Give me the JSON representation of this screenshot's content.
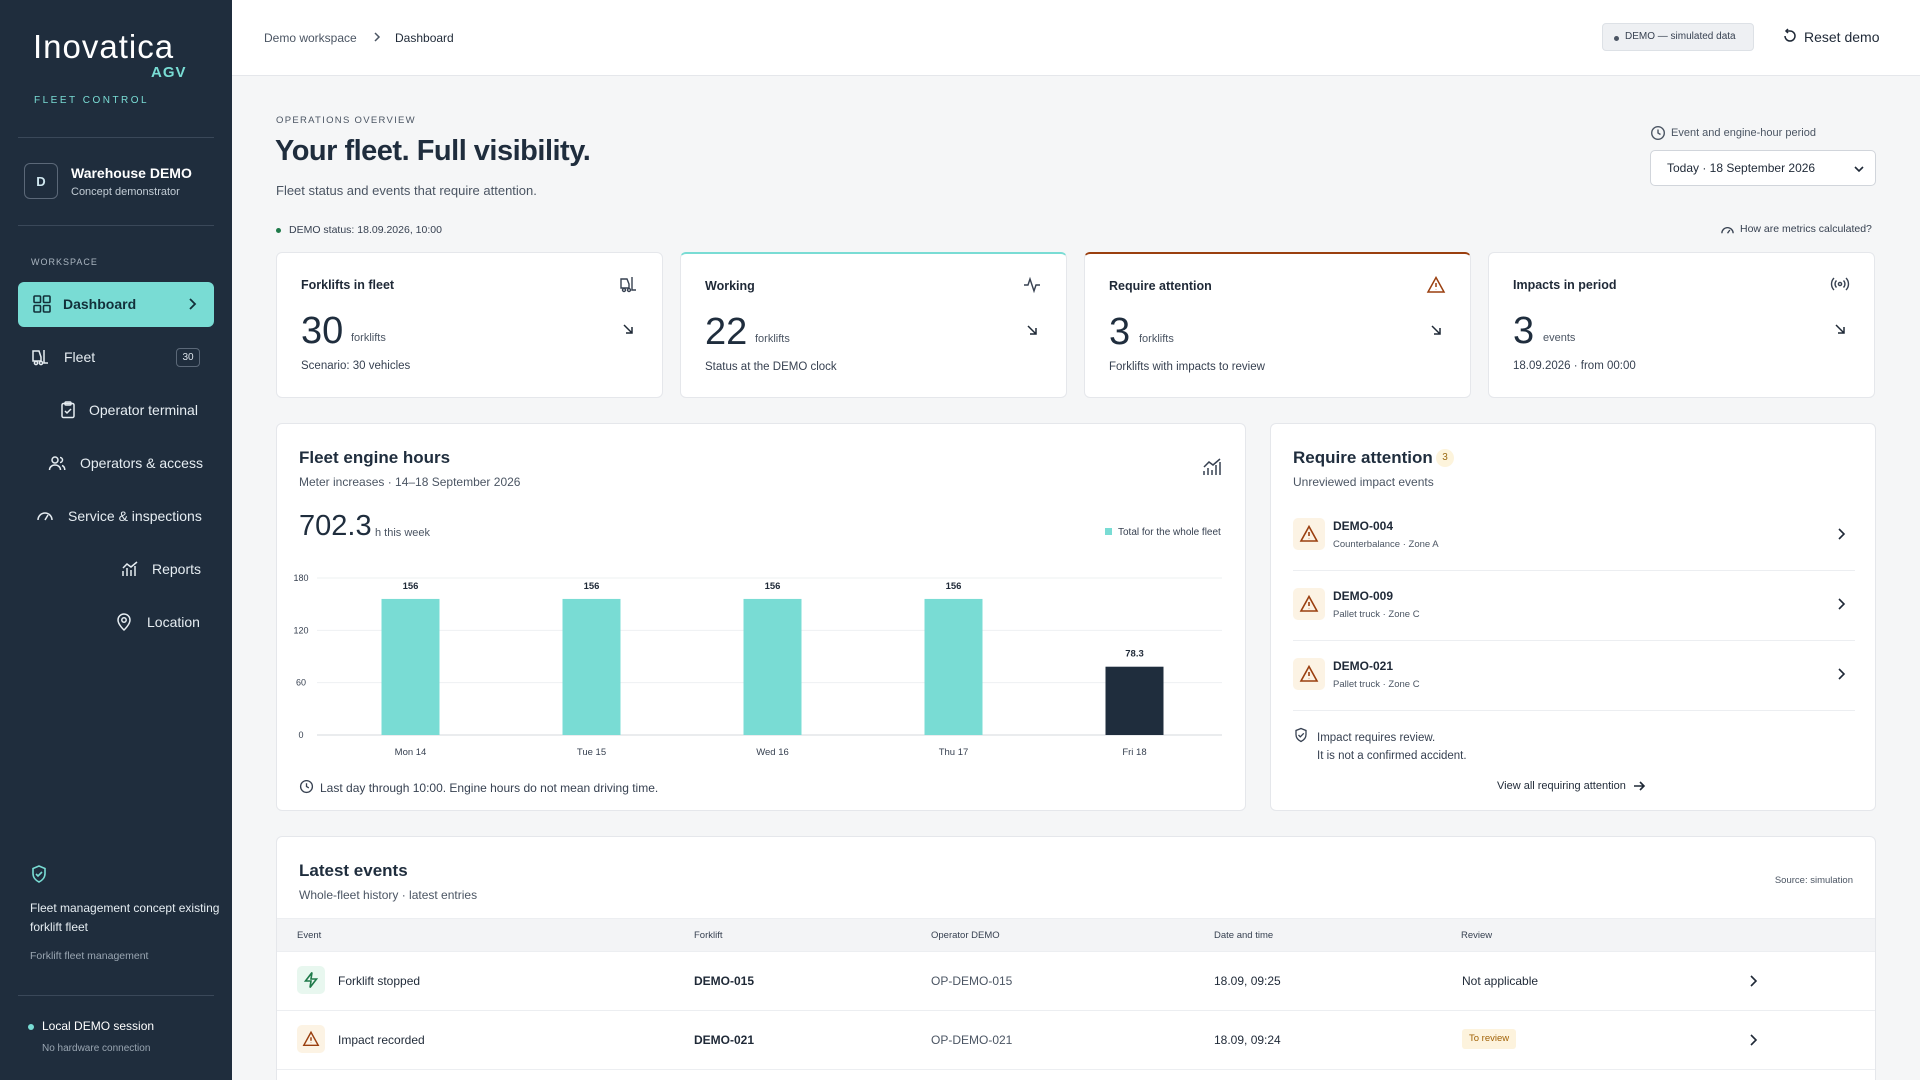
{
  "sidebar": {
    "logo": {
      "name": "Inovatica",
      "sub": "AGV",
      "tagline": "FLEET CONTROL"
    },
    "workspace": {
      "initial": "D",
      "title": "Warehouse DEMO",
      "subtitle": "Concept demonstrator"
    },
    "section_label": "WORKSPACE",
    "items": [
      {
        "label": "Dashboard",
        "icon": "grid-icon",
        "active": true
      },
      {
        "label": "Fleet",
        "icon": "forklift-icon",
        "badge": "30"
      },
      {
        "label": "Operator terminal",
        "icon": "clipboard-icon"
      },
      {
        "label": "Operators & access",
        "icon": "users-icon"
      },
      {
        "label": "Service & inspections",
        "icon": "gauge-icon"
      },
      {
        "label": "Reports",
        "icon": "chart-icon"
      },
      {
        "label": "Location",
        "icon": "pin-icon"
      }
    ],
    "footer": {
      "text": "Fleet management concept existing forklift fleet",
      "sub": "Forklift fleet management",
      "session": "Local DEMO session",
      "session_sub": "No hardware connection"
    }
  },
  "topbar": {
    "breadcrumb": [
      "Demo workspace",
      "Dashboard"
    ],
    "demo_pill": "DEMO — simulated data",
    "reset_label": "Reset demo"
  },
  "header": {
    "eyebrow": "OPERATIONS OVERVIEW",
    "title": "Your fleet. Full visibility.",
    "subtitle": "Fleet status and events that require attention.",
    "status": "DEMO status: 18.09.2026, 10:00",
    "period_label": "Event and engine-hour period",
    "period_value": "Today · 18 September 2026",
    "how_calc": "How are metrics calculated?"
  },
  "kpis": [
    {
      "title": "Forklifts in fleet",
      "value": "30",
      "unit": "forklifts",
      "foot": "Scenario: 30 vehicles",
      "icon": "forklift-icon"
    },
    {
      "title": "Working",
      "value": "22",
      "unit": "forklifts",
      "foot": "Status at the DEMO clock",
      "icon": "activity-icon"
    },
    {
      "title": "Require attention",
      "value": "3",
      "unit": "forklifts",
      "foot": "Forklifts with impacts to review",
      "icon": "warning-icon"
    },
    {
      "title": "Impacts in period",
      "value": "3",
      "unit": "events",
      "foot": "18.09.2026 · from 00:00",
      "icon": "signal-icon"
    }
  ],
  "engine": {
    "title": "Fleet engine hours",
    "subtitle": "Meter increases · 14–18 September 2026",
    "value": "702.3",
    "unit": "h this week",
    "legend": "Total for the whole fleet",
    "note": "Last day through 10:00. Engine hours do not mean driving time."
  },
  "chart_data": {
    "type": "bar",
    "categories": [
      "Mon 14",
      "Tue 15",
      "Wed 16",
      "Thu 17",
      "Fri 18"
    ],
    "values": [
      156,
      156,
      156,
      156,
      78.3
    ],
    "value_labels": [
      "156",
      "156",
      "156",
      "156",
      "78.3"
    ],
    "yticks": [
      "180",
      "120",
      "60",
      "0"
    ],
    "ylim": [
      0,
      180
    ],
    "colors": {
      "bar": "#79dcd4",
      "current": "#1f2d3d"
    },
    "grid": true,
    "legend": "top-right"
  },
  "attention": {
    "title": "Require attention",
    "count": "3",
    "subtitle": "Unreviewed impact events",
    "items": [
      {
        "title": "DEMO-004",
        "sub": "Counterbalance · Zone A"
      },
      {
        "title": "DEMO-009",
        "sub": "Pallet truck · Zone C"
      },
      {
        "title": "DEMO-021",
        "sub": "Pallet truck · Zone C"
      }
    ],
    "note_line1": "Impact requires review.",
    "note_line2": "It is not a confirmed accident.",
    "link": "View all requiring attention"
  },
  "events": {
    "title": "Latest events",
    "subtitle": "Whole-fleet history · latest entries",
    "source": "Source: simulation",
    "columns": [
      "Event",
      "Forklift",
      "Operator DEMO",
      "Date and time",
      "Review"
    ],
    "rows": [
      {
        "event": "Forklift stopped",
        "forklift": "DEMO-015",
        "operator": "OP-DEMO-015",
        "datetime": "18.09, 09:25",
        "review": "Not applicable",
        "icon": "bolt-icon"
      },
      {
        "event": "Impact recorded",
        "forklift": "DEMO-021",
        "operator": "OP-DEMO-021",
        "datetime": "18.09, 09:24",
        "review": "To review",
        "icon": "warning-icon"
      }
    ]
  },
  "colors": {
    "accent": "#79dcd4",
    "sidebar": "#1f2d3d",
    "warning": "#9a3f0f"
  }
}
